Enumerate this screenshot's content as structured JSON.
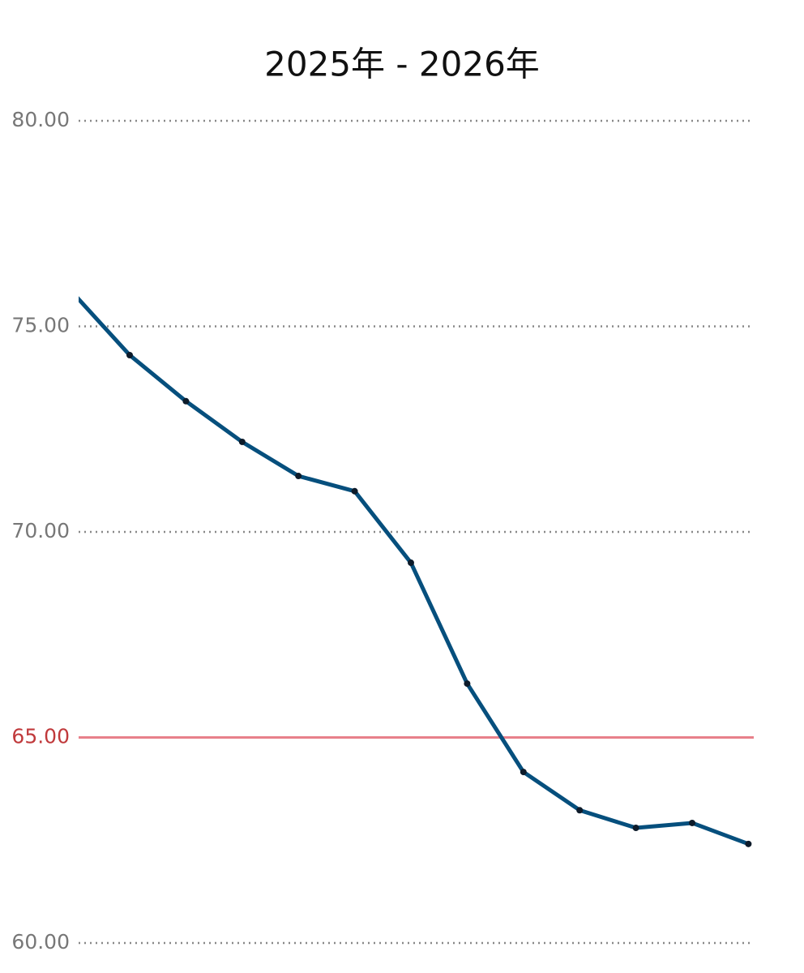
{
  "chart_data": {
    "type": "line",
    "title": "2025年 - 2026年",
    "categories": [
      null,
      null,
      null,
      null,
      null,
      null,
      null,
      null,
      null,
      null,
      null,
      null,
      null
    ],
    "series": [
      {
        "color": "#064f7d",
        "values": [
          75.8,
          74.3,
          73.18,
          72.19,
          71.36,
          70.99,
          69.25,
          66.31,
          64.16,
          63.23,
          62.8,
          62.92,
          62.41
        ]
      }
    ],
    "ylim": [
      60,
      80
    ],
    "yticks": [
      {
        "value": 60,
        "label": "60.00"
      },
      {
        "value": 65,
        "label": "65.00"
      },
      {
        "value": 70,
        "label": "70.00"
      },
      {
        "value": 75,
        "label": "75.00"
      },
      {
        "value": 80,
        "label": "80.00"
      }
    ],
    "reference_line": {
      "value": 65,
      "color": "#e8808a",
      "label_color": "#c0393b"
    },
    "grid": true
  }
}
